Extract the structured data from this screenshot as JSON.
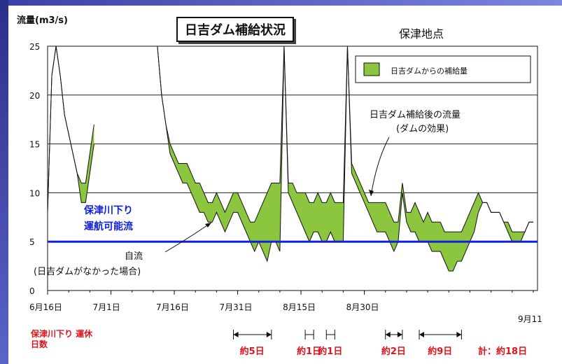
{
  "chart_data": {
    "type": "area",
    "title": "日吉ダム補給状況",
    "subtitle": "保津地点",
    "ylabel": "流量(m3/s)",
    "xlabel": "",
    "ylim": [
      0,
      25
    ],
    "yticks": [
      0,
      5,
      10,
      15,
      20,
      25
    ],
    "x_ticks": [
      "6月16日",
      "7月1日",
      "7月16日",
      "7月31日",
      "8月15日",
      "8月30日"
    ],
    "x_end_label": "9月11",
    "grid": true,
    "legend_position": "top-right",
    "legend": "日吉ダムからの補給量",
    "colors": {
      "fill": "#8cc63f",
      "line": "#000000",
      "threshold": "#1020e0",
      "alert": "#e0141c"
    },
    "series": [
      {
        "name": "日吉ダム補給後の流量",
        "values": [
          [
            0,
            8
          ],
          [
            1,
            22
          ],
          [
            2,
            25
          ],
          [
            3,
            22
          ],
          [
            4,
            18
          ],
          [
            5,
            16
          ],
          [
            6,
            14
          ],
          [
            7,
            12
          ],
          [
            8,
            11
          ],
          [
            9,
            11
          ],
          [
            10,
            14
          ],
          [
            11,
            17
          ],
          [
            12,
            null
          ],
          [
            26,
            25
          ],
          [
            27,
            20
          ],
          [
            28,
            17
          ],
          [
            29,
            15
          ],
          [
            30,
            14
          ],
          [
            31,
            13
          ],
          [
            32,
            13
          ],
          [
            33,
            13
          ],
          [
            34,
            12
          ],
          [
            35,
            11
          ],
          [
            36,
            11
          ],
          [
            37,
            10
          ],
          [
            38,
            9
          ],
          [
            39,
            9
          ],
          [
            40,
            10
          ],
          [
            41,
            9
          ],
          [
            42,
            8
          ],
          [
            43,
            9
          ],
          [
            44,
            10
          ],
          [
            45,
            10
          ],
          [
            46,
            9
          ],
          [
            47,
            8
          ],
          [
            48,
            7
          ],
          [
            49,
            7
          ],
          [
            50,
            8
          ],
          [
            51,
            9
          ],
          [
            52,
            10
          ],
          [
            53,
            11
          ],
          [
            54,
            11
          ],
          [
            55,
            11
          ],
          [
            56,
            25
          ],
          [
            57,
            11
          ],
          [
            58,
            11
          ],
          [
            59,
            10
          ],
          [
            60,
            10
          ],
          [
            61,
            10
          ],
          [
            62,
            9
          ],
          [
            63,
            9
          ],
          [
            64,
            10
          ],
          [
            65,
            9
          ],
          [
            66,
            9
          ],
          [
            67,
            10
          ],
          [
            68,
            9
          ],
          [
            69,
            9
          ],
          [
            70,
            9
          ],
          [
            71,
            25
          ],
          [
            72,
            13
          ],
          [
            73,
            12
          ],
          [
            74,
            11
          ],
          [
            75,
            10
          ],
          [
            76,
            9
          ],
          [
            77,
            9
          ],
          [
            78,
            9
          ],
          [
            79,
            9
          ],
          [
            80,
            9
          ],
          [
            81,
            8
          ],
          [
            82,
            7
          ],
          [
            83,
            7
          ],
          [
            84,
            11
          ],
          [
            85,
            8
          ],
          [
            86,
            8
          ],
          [
            87,
            9
          ],
          [
            88,
            8
          ],
          [
            89,
            7
          ],
          [
            90,
            8
          ],
          [
            91,
            7
          ],
          [
            92,
            7
          ],
          [
            93,
            7
          ],
          [
            94,
            6
          ],
          [
            95,
            6
          ],
          [
            96,
            6
          ],
          [
            97,
            6
          ],
          [
            98,
            6
          ],
          [
            99,
            7
          ],
          [
            100,
            8
          ],
          [
            101,
            9
          ],
          [
            102,
            10
          ],
          [
            103,
            9
          ],
          [
            104,
            9
          ],
          [
            105,
            8
          ],
          [
            106,
            8
          ],
          [
            107,
            8
          ],
          [
            108,
            7
          ],
          [
            109,
            7
          ],
          [
            110,
            6
          ],
          [
            111,
            6
          ],
          [
            112,
            6
          ],
          [
            113,
            6
          ],
          [
            114,
            7
          ],
          [
            115,
            7
          ]
        ]
      },
      {
        "name": "自流(日吉ダムがなかった場合)",
        "values": [
          [
            0,
            8
          ],
          [
            1,
            22
          ],
          [
            2,
            25
          ],
          [
            3,
            22
          ],
          [
            4,
            18
          ],
          [
            5,
            16
          ],
          [
            6,
            14
          ],
          [
            7,
            12
          ],
          [
            8,
            9
          ],
          [
            9,
            9
          ],
          [
            10,
            12
          ],
          [
            11,
            15
          ],
          [
            12,
            null
          ],
          [
            26,
            25
          ],
          [
            27,
            20
          ],
          [
            28,
            17
          ],
          [
            29,
            14
          ],
          [
            30,
            13
          ],
          [
            31,
            12
          ],
          [
            32,
            11
          ],
          [
            33,
            11
          ],
          [
            34,
            10
          ],
          [
            35,
            9
          ],
          [
            36,
            8
          ],
          [
            37,
            8
          ],
          [
            38,
            7
          ],
          [
            39,
            7
          ],
          [
            40,
            8
          ],
          [
            41,
            7
          ],
          [
            42,
            6
          ],
          [
            43,
            7
          ],
          [
            44,
            8
          ],
          [
            45,
            8
          ],
          [
            46,
            7
          ],
          [
            47,
            6
          ],
          [
            48,
            5
          ],
          [
            49,
            4
          ],
          [
            50,
            5
          ],
          [
            51,
            4
          ],
          [
            52,
            3
          ],
          [
            53,
            5
          ],
          [
            54,
            5
          ],
          [
            55,
            4
          ],
          [
            56,
            25
          ],
          [
            57,
            10
          ],
          [
            58,
            9
          ],
          [
            59,
            8
          ],
          [
            60,
            7
          ],
          [
            61,
            6
          ],
          [
            62,
            5
          ],
          [
            63,
            6
          ],
          [
            64,
            6
          ],
          [
            65,
            5
          ],
          [
            66,
            5
          ],
          [
            67,
            6
          ],
          [
            68,
            5
          ],
          [
            69,
            5
          ],
          [
            70,
            5
          ],
          [
            71,
            25
          ],
          [
            72,
            12
          ],
          [
            73,
            11
          ],
          [
            74,
            10
          ],
          [
            75,
            9
          ],
          [
            76,
            8
          ],
          [
            77,
            7
          ],
          [
            78,
            6
          ],
          [
            79,
            6
          ],
          [
            80,
            6
          ],
          [
            81,
            5
          ],
          [
            82,
            4
          ],
          [
            83,
            5
          ],
          [
            84,
            10
          ],
          [
            85,
            7
          ],
          [
            86,
            6
          ],
          [
            87,
            6
          ],
          [
            88,
            5
          ],
          [
            89,
            5
          ],
          [
            90,
            5
          ],
          [
            91,
            4
          ],
          [
            92,
            4
          ],
          [
            93,
            4
          ],
          [
            94,
            3
          ],
          [
            95,
            2
          ],
          [
            96,
            2
          ],
          [
            97,
            3
          ],
          [
            98,
            3
          ],
          [
            99,
            4
          ],
          [
            100,
            5
          ],
          [
            101,
            6
          ],
          [
            102,
            8
          ],
          [
            103,
            9
          ],
          [
            104,
            9
          ],
          [
            105,
            8
          ],
          [
            106,
            8
          ],
          [
            107,
            8
          ],
          [
            108,
            7
          ],
          [
            109,
            6
          ],
          [
            110,
            5
          ],
          [
            111,
            5
          ],
          [
            112,
            5
          ],
          [
            113,
            6
          ],
          [
            114,
            7
          ],
          [
            115,
            7
          ]
        ]
      }
    ],
    "threshold": {
      "value": 5,
      "label_line1": "保津川下り",
      "label_line2": "運航可能流"
    },
    "annotations": [
      {
        "text_line1": "日吉ダム補給後の流量",
        "text_line2": "(ダムの効果)"
      },
      {
        "text_line1": "自流",
        "text_line2": "(日吉ダムがなかった場合)"
      }
    ],
    "suspension_label": "保津川下り 運休日数",
    "suspension_periods": [
      {
        "label": "約5日",
        "marker": "|<-->|",
        "x_days": [
          44,
          53
        ]
      },
      {
        "label": "約1日",
        "marker": "H",
        "x_days": [
          61,
          63
        ]
      },
      {
        "label": "約1日",
        "marker": "H",
        "x_days": [
          66,
          68
        ]
      },
      {
        "label": "約2日",
        "marker": "->|<-",
        "x_days": [
          80,
          84
        ]
      },
      {
        "label": "約9日",
        "marker": "|<-->|",
        "x_days": [
          88,
          98
        ]
      }
    ],
    "total_label": "計：約18日"
  }
}
